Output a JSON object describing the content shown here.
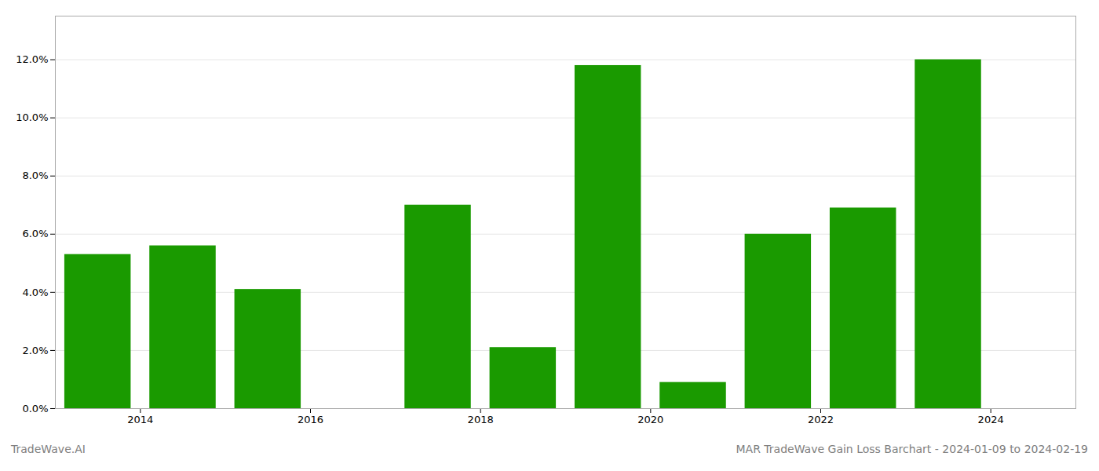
{
  "chart_data": {
    "type": "bar",
    "x": [
      2013.5,
      2014.5,
      2015.5,
      2016.5,
      2017.5,
      2018.5,
      2019.5,
      2020.5,
      2021.5,
      2022.5,
      2023.5
    ],
    "values": [
      0.053,
      0.056,
      0.041,
      0.0,
      0.07,
      0.021,
      0.118,
      0.009,
      0.06,
      0.069,
      0.12
    ],
    "color": "#1a9a00",
    "xlim": [
      2013,
      2025
    ],
    "xticks": [
      2014,
      2016,
      2018,
      2020,
      2022,
      2024
    ],
    "ylim": [
      0,
      0.135
    ],
    "yticks": [
      {
        "value": 0.0,
        "label": "0.0%"
      },
      {
        "value": 0.02,
        "label": "2.0%"
      },
      {
        "value": 0.04,
        "label": "4.0%"
      },
      {
        "value": 0.06,
        "label": "6.0%"
      },
      {
        "value": 0.08,
        "label": "8.0%"
      },
      {
        "value": 0.1,
        "label": "10.0%"
      },
      {
        "value": 0.12,
        "label": "12.0%"
      }
    ],
    "grid": true,
    "annotations": [
      "TradeWave.AI",
      "MAR TradeWave Gain Loss Barchart - 2024-01-09 to 2024-02-19"
    ]
  }
}
